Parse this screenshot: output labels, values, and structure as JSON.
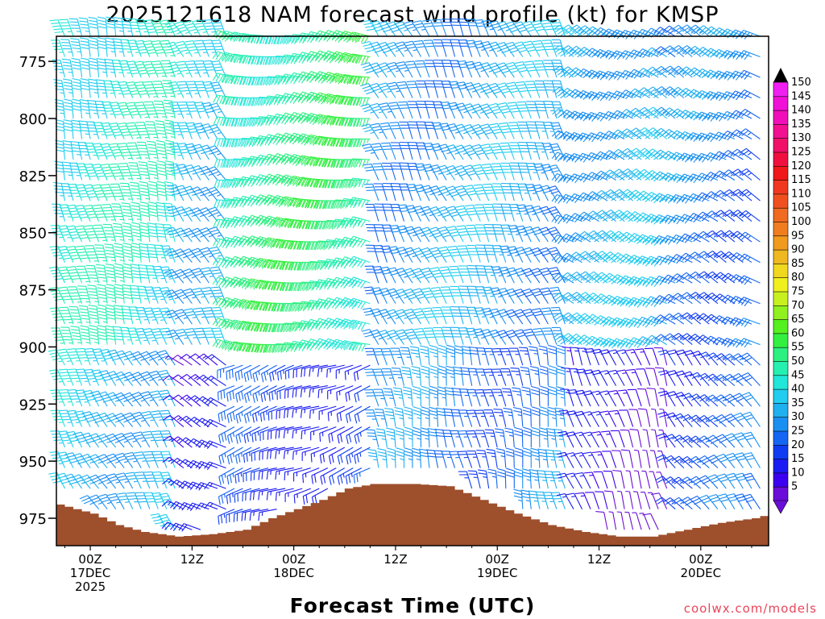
{
  "chart_data": {
    "type": "wind_barb_time_height",
    "title": "2025121618 NAM forecast wind profile (kt) for KMSP",
    "xlabel": "Forecast Time (UTC)",
    "ylabel": "",
    "credit": "coolwx.com/models",
    "y_ticks": [
      "775",
      "800",
      "825",
      "850",
      "875",
      "900",
      "925",
      "950",
      "975"
    ],
    "y_tick_values": [
      775,
      800,
      825,
      850,
      875,
      900,
      925,
      950,
      975
    ],
    "ylim": [
      987,
      764
    ],
    "x_range_hours": [
      -4,
      80
    ],
    "x_ticks": [
      {
        "hour": 0,
        "line1": "00Z",
        "line2": "17DEC",
        "line3": "2025"
      },
      {
        "hour": 12,
        "line1": "12Z",
        "line2": "",
        "line3": ""
      },
      {
        "hour": 24,
        "line1": "00Z",
        "line2": "18DEC",
        "line3": ""
      },
      {
        "hour": 36,
        "line1": "12Z",
        "line2": "",
        "line3": ""
      },
      {
        "hour": 48,
        "line1": "00Z",
        "line2": "19DEC",
        "line3": ""
      },
      {
        "hour": 60,
        "line1": "12Z",
        "line2": "",
        "line3": ""
      },
      {
        "hour": 72,
        "line1": "00Z",
        "line2": "20DEC",
        "line3": ""
      }
    ],
    "colorbar": {
      "levels": [
        5,
        10,
        15,
        20,
        25,
        30,
        35,
        40,
        45,
        50,
        55,
        60,
        65,
        70,
        75,
        80,
        85,
        90,
        95,
        100,
        105,
        110,
        115,
        120,
        125,
        130,
        135,
        140,
        145,
        150
      ],
      "labels": [
        "5",
        "10",
        "15",
        "20",
        "25",
        "30",
        "35",
        "40",
        "45",
        "50",
        "55",
        "60",
        "65",
        "70",
        "75",
        "80",
        "85",
        "90",
        "95",
        "100",
        "105",
        "110",
        "115",
        "120",
        "125",
        "130",
        "135",
        "140",
        "145",
        "150"
      ],
      "colors": [
        "#6a0dd8",
        "#3b00f0",
        "#1a1af2",
        "#0f3cf2",
        "#1566f2",
        "#1a8ff2",
        "#1fb0f0",
        "#22cdf0",
        "#22e6d8",
        "#26f0b0",
        "#2cf080",
        "#33f040",
        "#55f020",
        "#90f020",
        "#c8f020",
        "#f0f020",
        "#f0d820",
        "#f0b820",
        "#f09a20",
        "#f07e20",
        "#f06a20",
        "#f05020",
        "#f03820",
        "#f01818",
        "#f01040",
        "#f01068",
        "#f01090",
        "#f010b8",
        "#f010d8",
        "#f020f0"
      ]
    },
    "terrain_pressure": [
      {
        "hour": -4,
        "p": 969
      },
      {
        "hour": -2,
        "p": 971
      },
      {
        "hour": 0,
        "p": 973
      },
      {
        "hour": 3,
        "p": 978
      },
      {
        "hour": 6,
        "p": 981
      },
      {
        "hour": 10,
        "p": 983
      },
      {
        "hour": 14,
        "p": 982
      },
      {
        "hour": 18,
        "p": 980
      },
      {
        "hour": 21,
        "p": 975
      },
      {
        "hour": 24,
        "p": 971
      },
      {
        "hour": 27,
        "p": 967
      },
      {
        "hour": 30,
        "p": 962
      },
      {
        "hour": 33,
        "p": 960
      },
      {
        "hour": 38,
        "p": 960
      },
      {
        "hour": 42,
        "p": 961
      },
      {
        "hour": 46,
        "p": 967
      },
      {
        "hour": 50,
        "p": 973
      },
      {
        "hour": 54,
        "p": 978
      },
      {
        "hour": 58,
        "p": 981
      },
      {
        "hour": 62,
        "p": 983
      },
      {
        "hour": 66,
        "p": 983
      },
      {
        "hour": 70,
        "p": 980
      },
      {
        "hour": 74,
        "p": 977
      },
      {
        "hour": 78,
        "p": 975
      },
      {
        "hour": 80,
        "p": 973
      }
    ],
    "barb_columns": {
      "hour_start": -3,
      "hour_end": 79,
      "step_hours": 1,
      "p_top": 764,
      "p_step": 9
    },
    "wind_regimes": [
      {
        "hours": [
          -3,
          10
        ],
        "layer": "upper",
        "dir_deg": 345,
        "speed_kt": 48
      },
      {
        "hours": [
          -3,
          10
        ],
        "layer": "lower",
        "dir_deg": 330,
        "speed_kt": 40
      },
      {
        "hours": [
          10,
          16
        ],
        "layer": "upper",
        "dir_deg": 330,
        "speed_kt": 40
      },
      {
        "hours": [
          10,
          16
        ],
        "layer": "lower",
        "dir_deg": 300,
        "speed_kt": 12
      },
      {
        "hours": [
          16,
          33
        ],
        "layer": "upper",
        "dir_deg": 280,
        "speed_kt": 55
      },
      {
        "hours": [
          16,
          33
        ],
        "layer": "lower",
        "dir_deg": 250,
        "speed_kt": 22
      },
      {
        "hours": [
          33,
          56
        ],
        "layer": "upper",
        "dir_deg": 335,
        "speed_kt": 35
      },
      {
        "hours": [
          33,
          56
        ],
        "layer": "lower",
        "dir_deg": 350,
        "speed_kt": 30
      },
      {
        "hours": [
          56,
          68
        ],
        "layer": "upper",
        "dir_deg": 300,
        "speed_kt": 38
      },
      {
        "hours": [
          56,
          68
        ],
        "layer": "lower",
        "dir_deg": 340,
        "speed_kt": 12
      },
      {
        "hours": [
          68,
          79
        ],
        "layer": "upper",
        "dir_deg": 300,
        "speed_kt": 30
      },
      {
        "hours": [
          68,
          79
        ],
        "layer": "lower",
        "dir_deg": 320,
        "speed_kt": 25
      }
    ],
    "regime_boundary_pressure": 900
  }
}
